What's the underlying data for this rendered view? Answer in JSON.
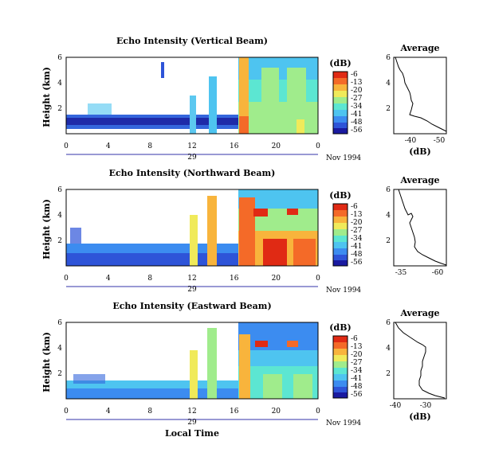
{
  "chart_data": [
    {
      "type": "heatmap",
      "title": "Echo Intensity (Vertical Beam)",
      "ylabel": "Height (km)",
      "x_ticks": [
        "0",
        "4",
        "8",
        "12",
        "16",
        "20",
        "0"
      ],
      "y_ticks": [
        "6",
        "4",
        "2"
      ],
      "date_day": "29",
      "date_label": "Nov 1994",
      "colorbar": {
        "unit": "(dB)",
        "ticks": [
          "-6",
          "-13",
          "-20",
          "-27",
          "-34",
          "-41",
          "-48",
          "-56"
        ]
      },
      "profile": {
        "title": "Average",
        "xlabel": "(dB)",
        "x_ticks": [
          "-40",
          "-50"
        ],
        "y_ticks": [
          "6",
          "4",
          "2"
        ]
      }
    },
    {
      "type": "heatmap",
      "title": "Echo Intensity (Northward Beam)",
      "ylabel": "Height (km)",
      "x_ticks": [
        "0",
        "4",
        "8",
        "12",
        "16",
        "20",
        "0"
      ],
      "y_ticks": [
        "6",
        "4",
        "2"
      ],
      "date_day": "29",
      "date_label": "Nov 1994",
      "colorbar": {
        "unit": "(dB)",
        "ticks": [
          "-6",
          "-13",
          "-20",
          "-27",
          "-34",
          "-41",
          "-48",
          "-56"
        ]
      },
      "profile": {
        "title": "Average",
        "xlabel": "(dB)",
        "x_ticks": [
          "-35",
          "-60"
        ],
        "y_ticks": [
          "6",
          "4",
          "2"
        ]
      }
    },
    {
      "type": "heatmap",
      "title": "Echo Intensity (Eastward Beam)",
      "ylabel": "Height (km)",
      "x_ticks": [
        "0",
        "4",
        "8",
        "12",
        "16",
        "20",
        "0"
      ],
      "y_ticks": [
        "6",
        "4",
        "2"
      ],
      "date_day": "29",
      "date_label": "Nov 1994",
      "colorbar": {
        "unit": "(dB)",
        "ticks": [
          "-6",
          "-13",
          "-20",
          "-27",
          "-34",
          "-41",
          "-48",
          "-56"
        ]
      },
      "profile": {
        "title": "Average",
        "xlabel": "(dB)",
        "x_ticks": [
          "-40",
          "-30"
        ],
        "y_ticks": [
          "6",
          "4",
          "2"
        ]
      }
    }
  ],
  "xlabel": "Local Time",
  "colorscale": [
    "#1a1aa0",
    "#2e54d8",
    "#3c8cf0",
    "#4ec4f0",
    "#5ce6d2",
    "#a0ec8c",
    "#f0ea5a",
    "#f8b43c",
    "#f46a28",
    "#e02a14"
  ]
}
